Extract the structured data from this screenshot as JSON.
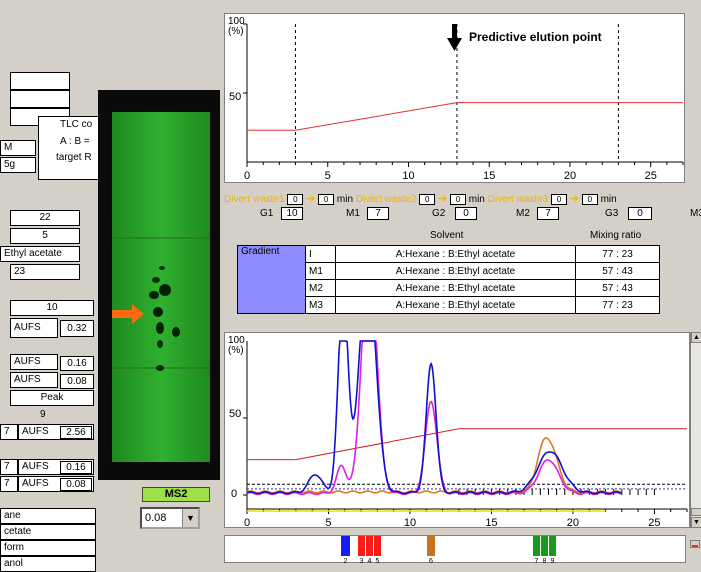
{
  "left_panel": {
    "tlc_label": "TLC co",
    "ab_label": "A : B =",
    "target_label": "target R",
    "m_label": "M",
    "g_label": "5g",
    "v22": "22",
    "v5": "5",
    "solvent": "Ethyl acetate",
    "v23": "23",
    "v10": "10",
    "aufs1": "AUFS",
    "aufs1_val": "0.32",
    "aufs2": "AUFS",
    "aufs2_val": "0.16",
    "aufs3": "AUFS",
    "aufs3_val": "0.08",
    "peak": "Peak",
    "v9": "9",
    "row_a_num": "7",
    "row_a_aufs": "AUFS",
    "row_a_val": "2.56",
    "row_b_num": "7",
    "row_b_aufs": "AUFS",
    "row_b_val": "0.16",
    "row_c_num": "7",
    "row_c_aufs": "AUFS",
    "row_c_val": "0.08",
    "solvent_list": [
      "ane",
      "cetate",
      "form",
      "anol"
    ]
  },
  "ms2": {
    "label": "MS2",
    "select_value": "0.08"
  },
  "gradient_chart": {
    "y_top": "100",
    "y_unit": "(%)",
    "y_mid": "50",
    "x_ticks": [
      "0",
      "5",
      "10",
      "15",
      "20",
      "25"
    ],
    "annotation": "Predictive elution point",
    "gradient_line_color": "#e03030"
  },
  "divert": {
    "w1_label": "Divert waste1",
    "w1_a": "0",
    "w1_b": "0",
    "w2_label": "Divert waste2",
    "w2_a": "0",
    "w2_b": "0",
    "w3_label": "Divert waste3",
    "w3_a": "0",
    "w3_b": "0",
    "min": "min"
  },
  "segments": {
    "g1_label": "G1",
    "g1_val": "10",
    "m1_label": "M1",
    "m1_val": "7",
    "g2_label": "G2",
    "g2_val": "0",
    "m2_label": "M2",
    "m2_val": "7",
    "g3_label": "G3",
    "g3_val": "0",
    "m3_label": "M3"
  },
  "gradient_table": {
    "solvent_header": "Solvent",
    "ratio_header": "Mixing ratio",
    "label": "Gradient",
    "rows": [
      {
        "id": "I",
        "solvent": "A:Hexane : B:Ethyl acetate",
        "ratio": "77 : 23"
      },
      {
        "id": "M1",
        "solvent": "A:Hexane : B:Ethyl acetate",
        "ratio": "57 : 43"
      },
      {
        "id": "M2",
        "solvent": "A:Hexane : B:Ethyl acetate",
        "ratio": "57 : 43"
      },
      {
        "id": "M3",
        "solvent": "A:Hexane : B:Ethyl acetate",
        "ratio": "77 : 23"
      }
    ]
  },
  "chromatogram": {
    "y_top": "100",
    "y_unit": "(%)",
    "y_mid": "50",
    "y_zero": "0",
    "x_ticks": [
      "0",
      "5",
      "10",
      "15",
      "20",
      "25"
    ]
  },
  "fractions": {
    "labels": [
      "2",
      "3",
      "4",
      "5",
      "6",
      "7",
      "8",
      "9"
    ],
    "colors": {
      "blue": "#1a1aff",
      "red": "#ff1a1a",
      "orange": "#c8741a",
      "green": "#1a9a1a"
    }
  },
  "chart_data": {
    "type": "line",
    "title": "",
    "xlabel": "",
    "ylabel": "(%)",
    "xlim": [
      0,
      27
    ],
    "ylim": [
      0,
      100
    ],
    "series": [
      {
        "x": [
          0,
          3,
          13,
          27
        ],
        "y": [
          23,
          23,
          43,
          43
        ]
      }
    ]
  }
}
